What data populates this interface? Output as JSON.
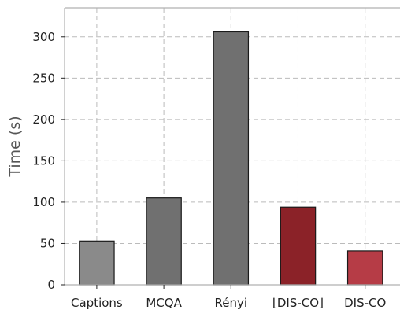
{
  "chart_data": {
    "type": "bar",
    "categories": [
      "Captions",
      "MCQA",
      "Rényi",
      "⌊DIS-CO⌋",
      "DIS-CO"
    ],
    "values": [
      53,
      105,
      306,
      94,
      41
    ],
    "colors": [
      "#8a8a8a",
      "#707070",
      "#707070",
      "#8b2228",
      "#b63c46"
    ],
    "xlabel": "",
    "ylabel": "Time (s)",
    "ylim": [
      0,
      335
    ],
    "yticks": [
      0,
      50,
      100,
      150,
      200,
      250,
      300
    ],
    "grid": true
  }
}
